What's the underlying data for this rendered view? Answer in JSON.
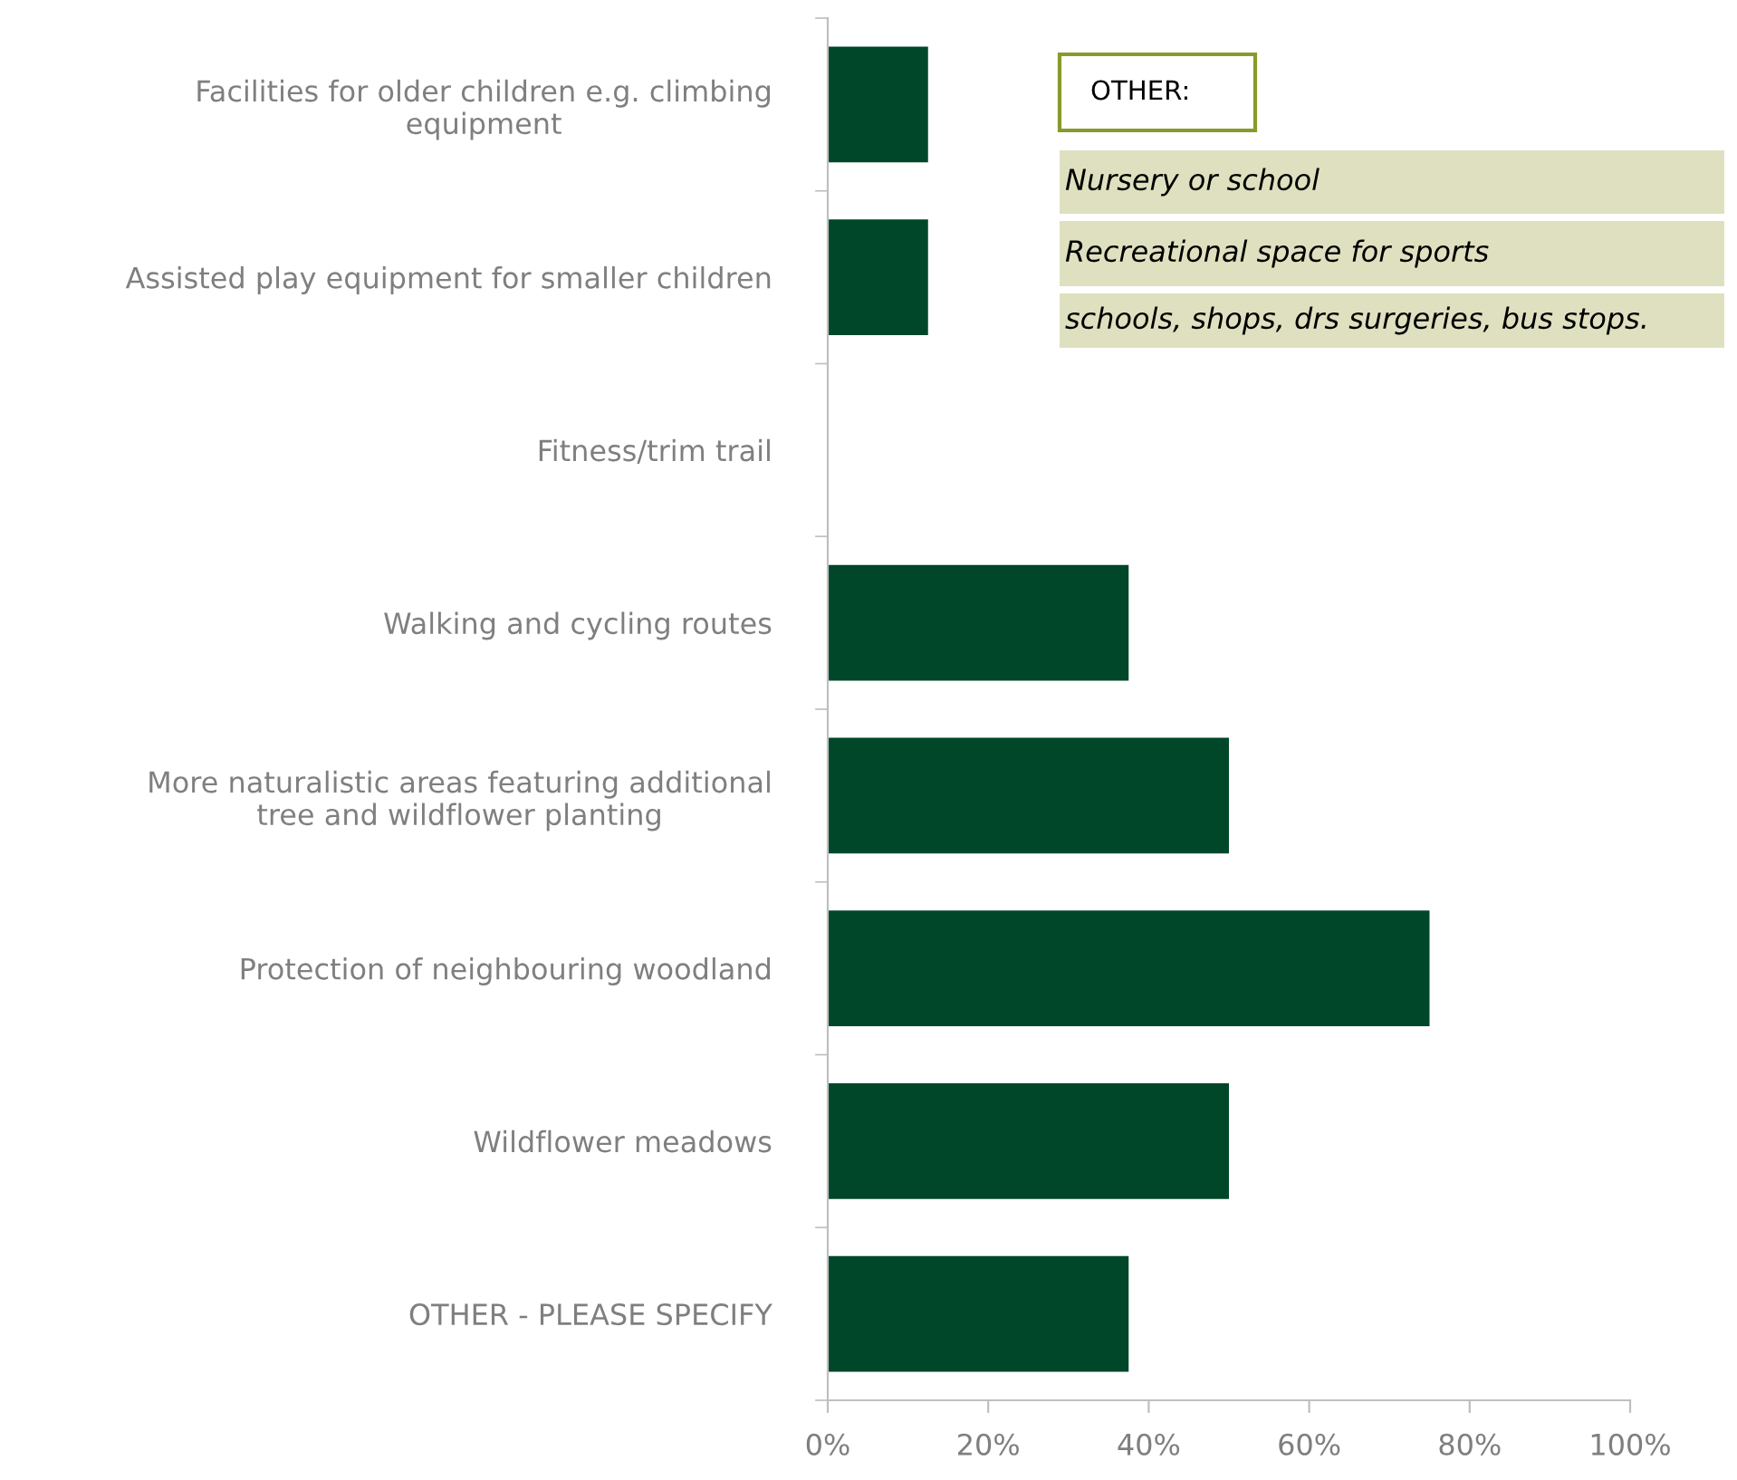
{
  "chart_data": {
    "type": "bar",
    "orientation": "horizontal",
    "categories": [
      "Facilities for older children e.g. climbing\nequipment",
      "Assisted play equipment for smaller children",
      "Fitness/trim trail",
      "Walking and cycling routes",
      "More naturalistic areas featuring additional\ntree and wildflower planting",
      "Protection of neighbouring woodland",
      "Wildflower meadows",
      "OTHER - PLEASE SPECIFY"
    ],
    "values": [
      12.5,
      12.5,
      0,
      37.5,
      50,
      75,
      50,
      37.5
    ],
    "color": "#00472a",
    "xlim": [
      0,
      100
    ],
    "xticks": [
      {
        "value": 0,
        "label": "0%"
      },
      {
        "value": 20,
        "label": "20%"
      },
      {
        "value": 40,
        "label": "40%"
      },
      {
        "value": 60,
        "label": "60%"
      },
      {
        "value": 80,
        "label": "80%"
      },
      {
        "value": 100,
        "label": "100%"
      }
    ],
    "grid": false,
    "legend": false,
    "annotations": [
      "OTHER:",
      "Nursery or school",
      "Recreational space for sports",
      "schools, shops, drs surgeries, bus stops."
    ]
  }
}
